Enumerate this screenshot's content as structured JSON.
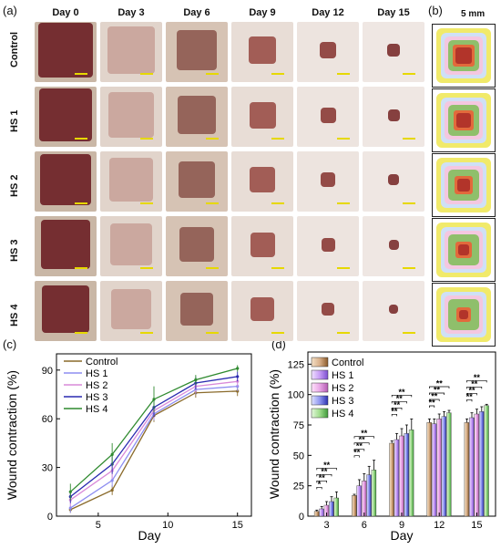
{
  "panel_labels": {
    "a": "(a)",
    "b": "(b)",
    "c": "(c)",
    "d": "(d)"
  },
  "photo_grid": {
    "columns": [
      "Day 0",
      "Day 3",
      "Day 6",
      "Day 9",
      "Day 12",
      "Day 15"
    ],
    "rows": [
      "Control",
      "HS 1",
      "HS 2",
      "HS 3",
      "HS 4"
    ]
  },
  "diagram_scale": "5 mm",
  "colors": {
    "control": "#8a6a2a",
    "hs1": "#8e8ef0",
    "hs2": "#d98ad9",
    "hs3": "#2a2ab0",
    "hs4": "#2f8a2f",
    "scale_bar": "#e6d800"
  },
  "chart_data": [
    {
      "type": "line",
      "xlabel": "Day",
      "ylabel": "Wound contraction (%)",
      "xlim": [
        2,
        16
      ],
      "ylim": [
        0,
        100
      ],
      "xticks": [
        5,
        10,
        15
      ],
      "yticks": [
        0,
        30,
        60,
        90
      ],
      "x": [
        3,
        6,
        9,
        12,
        15
      ],
      "legend_position": "top-left",
      "series": [
        {
          "name": "Control",
          "values": [
            4,
            16,
            62,
            76,
            77
          ],
          "errors": [
            2,
            3,
            4,
            3,
            3
          ]
        },
        {
          "name": "HS 1",
          "values": [
            5,
            22,
            63,
            78,
            80
          ],
          "errors": [
            3,
            4,
            4,
            3,
            3
          ]
        },
        {
          "name": "HS 2",
          "values": [
            10,
            28,
            65,
            80,
            83
          ],
          "errors": [
            4,
            5,
            5,
            4,
            3
          ]
        },
        {
          "name": "HS 3",
          "values": [
            12,
            32,
            67,
            82,
            86
          ],
          "errors": [
            4,
            6,
            6,
            4,
            3
          ]
        },
        {
          "name": "HS 4",
          "values": [
            15,
            38,
            72,
            84,
            91
          ],
          "errors": [
            5,
            7,
            8,
            3,
            2
          ]
        }
      ]
    },
    {
      "type": "bar",
      "xlabel": "Day",
      "ylabel": "Wound contraction (%)",
      "ylim": [
        0,
        135
      ],
      "yticks": [
        0,
        25,
        50,
        75,
        100,
        125
      ],
      "categories": [
        "3",
        "6",
        "9",
        "12",
        "15"
      ],
      "legend_position": "top-left",
      "series": [
        {
          "name": "Control",
          "values": [
            4,
            17,
            60,
            77,
            77
          ],
          "errors": [
            1,
            1,
            2,
            3,
            3
          ]
        },
        {
          "name": "HS 1",
          "values": [
            6,
            25,
            63,
            76,
            81
          ],
          "errors": [
            2,
            5,
            5,
            4,
            4
          ]
        },
        {
          "name": "HS 2",
          "values": [
            9,
            29,
            66,
            80,
            84
          ],
          "errors": [
            3,
            6,
            6,
            4,
            4
          ]
        },
        {
          "name": "HS 3",
          "values": [
            12,
            34,
            68,
            82,
            86
          ],
          "errors": [
            4,
            7,
            7,
            4,
            4
          ]
        },
        {
          "name": "HS 4",
          "values": [
            15,
            38,
            71,
            85,
            91
          ],
          "errors": [
            5,
            8,
            9,
            2,
            1
          ]
        }
      ],
      "significance": [
        "*",
        "**",
        "**",
        "**",
        "**"
      ]
    }
  ]
}
